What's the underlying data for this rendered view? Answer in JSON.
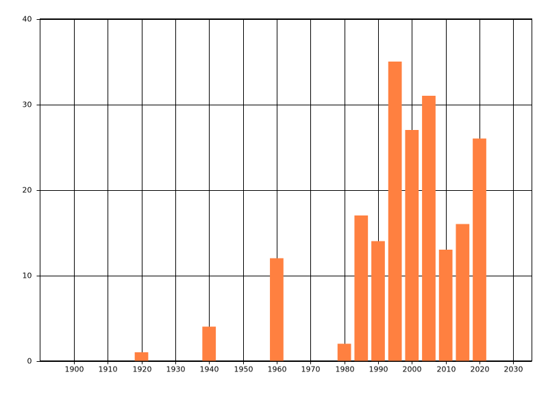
{
  "chart_data": {
    "type": "bar",
    "x": [
      1920,
      1940,
      1960,
      1980,
      1985,
      1990,
      1995,
      2000,
      2005,
      2010,
      2015,
      2020
    ],
    "values": [
      1,
      4,
      12,
      2,
      17,
      14,
      35,
      27,
      31,
      13,
      16,
      26
    ],
    "color": "#ff8040",
    "xlim": [
      1890,
      2035.5
    ],
    "xticks": [
      1900,
      1910,
      1920,
      1930,
      1940,
      1950,
      1960,
      1970,
      1980,
      1990,
      2000,
      2010,
      2020,
      2030
    ],
    "ylim": [
      0,
      40
    ],
    "yticks": [
      0,
      10,
      20,
      30,
      40
    ],
    "grid": true
  }
}
